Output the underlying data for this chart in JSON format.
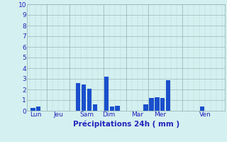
{
  "bars": [
    {
      "x": 1,
      "height": 0.3
    },
    {
      "x": 2,
      "height": 0.4
    },
    {
      "x": 9,
      "height": 2.6
    },
    {
      "x": 10,
      "height": 2.5
    },
    {
      "x": 11,
      "height": 2.1
    },
    {
      "x": 12,
      "height": 0.6
    },
    {
      "x": 14,
      "height": 3.2
    },
    {
      "x": 15,
      "height": 0.4
    },
    {
      "x": 16,
      "height": 0.5
    },
    {
      "x": 21,
      "height": 0.6
    },
    {
      "x": 22,
      "height": 1.2
    },
    {
      "x": 23,
      "height": 1.3
    },
    {
      "x": 24,
      "height": 1.2
    },
    {
      "x": 25,
      "height": 2.9
    },
    {
      "x": 31,
      "height": 0.4
    }
  ],
  "bar_width": 0.8,
  "n_total": 35,
  "xtick_positions": [
    1.5,
    5.5,
    10.5,
    14.5,
    19.5,
    23.5,
    31.5
  ],
  "xtick_labels": [
    "Lun",
    "Jeu",
    "Sam",
    "Dim",
    "Mar",
    "Mer",
    "Ven"
  ],
  "vline_positions": [
    3.5,
    7.5,
    13.5,
    17.5,
    21.5,
    27.5
  ],
  "yticks": [
    0,
    1,
    2,
    3,
    4,
    5,
    6,
    7,
    8,
    9,
    10
  ],
  "ylim": [
    0,
    10
  ],
  "xlim": [
    0,
    35
  ],
  "xlabel": "Précipitations 24h ( mm )",
  "bg_color": "#d5f0f0",
  "grid_color": "#9ab8b8",
  "bar_color": "#1a4fcc",
  "tick_color": "#2222bb",
  "xlabel_color": "#2222bb",
  "figsize": [
    3.2,
    2.0
  ],
  "dpi": 100
}
